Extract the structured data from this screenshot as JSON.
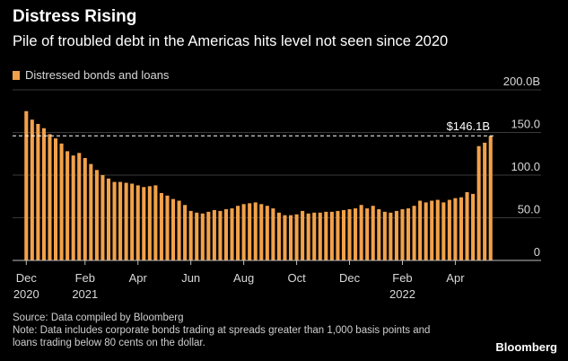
{
  "header": {
    "title": "Distress Rising",
    "subtitle": "Pile of troubled debt in the Americas hits level not seen since 2020"
  },
  "footer": {
    "source": "Source: Data compiled by Bloomberg",
    "note": "Note: Data includes corporate bonds trading at spreads greater than 1,000 basis points and loans trading below 80 cents on the dollar.",
    "brand": "Bloomberg"
  },
  "chart_data": {
    "type": "bar",
    "legend": [
      "Distressed bonds and loans"
    ],
    "ylabel_unit": "B",
    "ylim": [
      0,
      200
    ],
    "yticks": [
      {
        "value": 0,
        "label": "0"
      },
      {
        "value": 50,
        "label": "50.0"
      },
      {
        "value": 100,
        "label": "100.0"
      },
      {
        "value": 150,
        "label": "150.0"
      },
      {
        "value": 200,
        "label": "200.0B"
      }
    ],
    "x_labels": [
      {
        "index": 0,
        "label": "Dec",
        "sublabel": "2020"
      },
      {
        "index": 10,
        "label": "Feb",
        "sublabel": "2021"
      },
      {
        "index": 19,
        "label": "Apr",
        "sublabel": ""
      },
      {
        "index": 28,
        "label": "Jun",
        "sublabel": ""
      },
      {
        "index": 37,
        "label": "Aug",
        "sublabel": ""
      },
      {
        "index": 46,
        "label": "Oct",
        "sublabel": ""
      },
      {
        "index": 55,
        "label": "Dec",
        "sublabel": ""
      },
      {
        "index": 64,
        "label": "Feb",
        "sublabel": "2022"
      },
      {
        "index": 73,
        "label": "Apr",
        "sublabel": ""
      }
    ],
    "reference_line": {
      "value": 146.1,
      "label": "$146.1B"
    },
    "series": [
      {
        "name": "Distressed bonds and loans",
        "color": "#f2a14a",
        "values": [
          175,
          165,
          160,
          155,
          148,
          143,
          137,
          128,
          123,
          126,
          120,
          113,
          106,
          100,
          96,
          92,
          92,
          91,
          90,
          88,
          86,
          87,
          88,
          79,
          76,
          72,
          70,
          65,
          58,
          56,
          55,
          57,
          59,
          58,
          60,
          61,
          64,
          66,
          67,
          68,
          66,
          64,
          61,
          56,
          53,
          53,
          54,
          58,
          55,
          56,
          56,
          57,
          57,
          58,
          59,
          60,
          61,
          65,
          61,
          64,
          60,
          57,
          56,
          58,
          60,
          61,
          64,
          70,
          68,
          70,
          71,
          68,
          71,
          73,
          74,
          80,
          78,
          134,
          138,
          146
        ]
      }
    ]
  }
}
